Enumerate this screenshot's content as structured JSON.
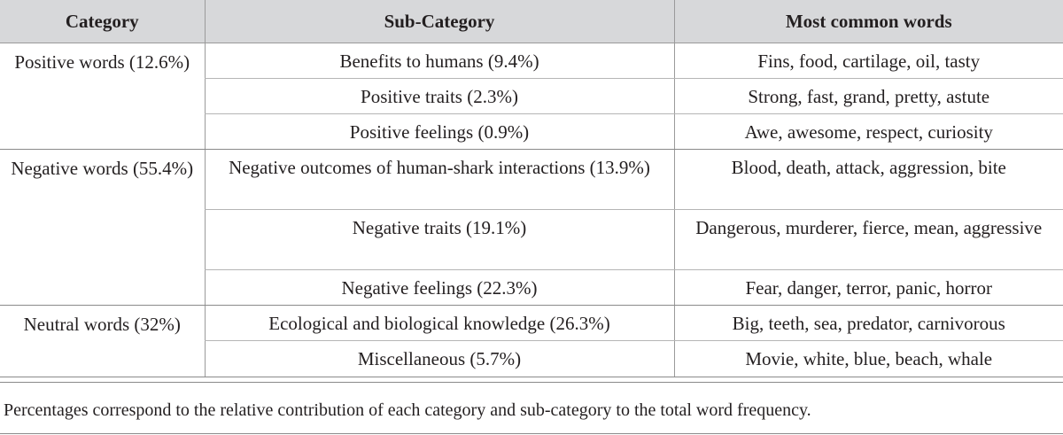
{
  "table": {
    "headers": [
      "Category",
      "Sub-Category",
      "Most common words"
    ],
    "groups": [
      {
        "category": "Positive words (12.6%)",
        "rows": [
          {
            "sub": "Benefits to humans (9.4%)",
            "words": "Fins, food, cartilage, oil, tasty"
          },
          {
            "sub": "Positive traits (2.3%)",
            "words": "Strong, fast, grand, pretty, astute"
          },
          {
            "sub": "Positive feelings (0.9%)",
            "words": "Awe, awesome, respect, curiosity"
          }
        ]
      },
      {
        "category": "Negative words (55.4%)",
        "rows": [
          {
            "sub": "Negative outcomes of human-shark interactions (13.9%)",
            "words": "Blood, death, attack, aggression, bite"
          },
          {
            "sub": "Negative traits (19.1%)",
            "words": "Dangerous, murderer, fierce, mean, aggressive"
          },
          {
            "sub": "Negative feelings (22.3%)",
            "words": "Fear, danger, terror, panic, horror"
          }
        ]
      },
      {
        "category": "Neutral words (32%)",
        "rows": [
          {
            "sub": "Ecological and biological knowledge (26.3%)",
            "words": "Big, teeth, sea, predator, carnivorous"
          },
          {
            "sub": "Miscellaneous (5.7%)",
            "words": "Movie, white, blue, beach, whale"
          }
        ]
      }
    ]
  },
  "footnote": "Percentages correspond to the relative contribution of each category and sub-category to the total word frequency."
}
